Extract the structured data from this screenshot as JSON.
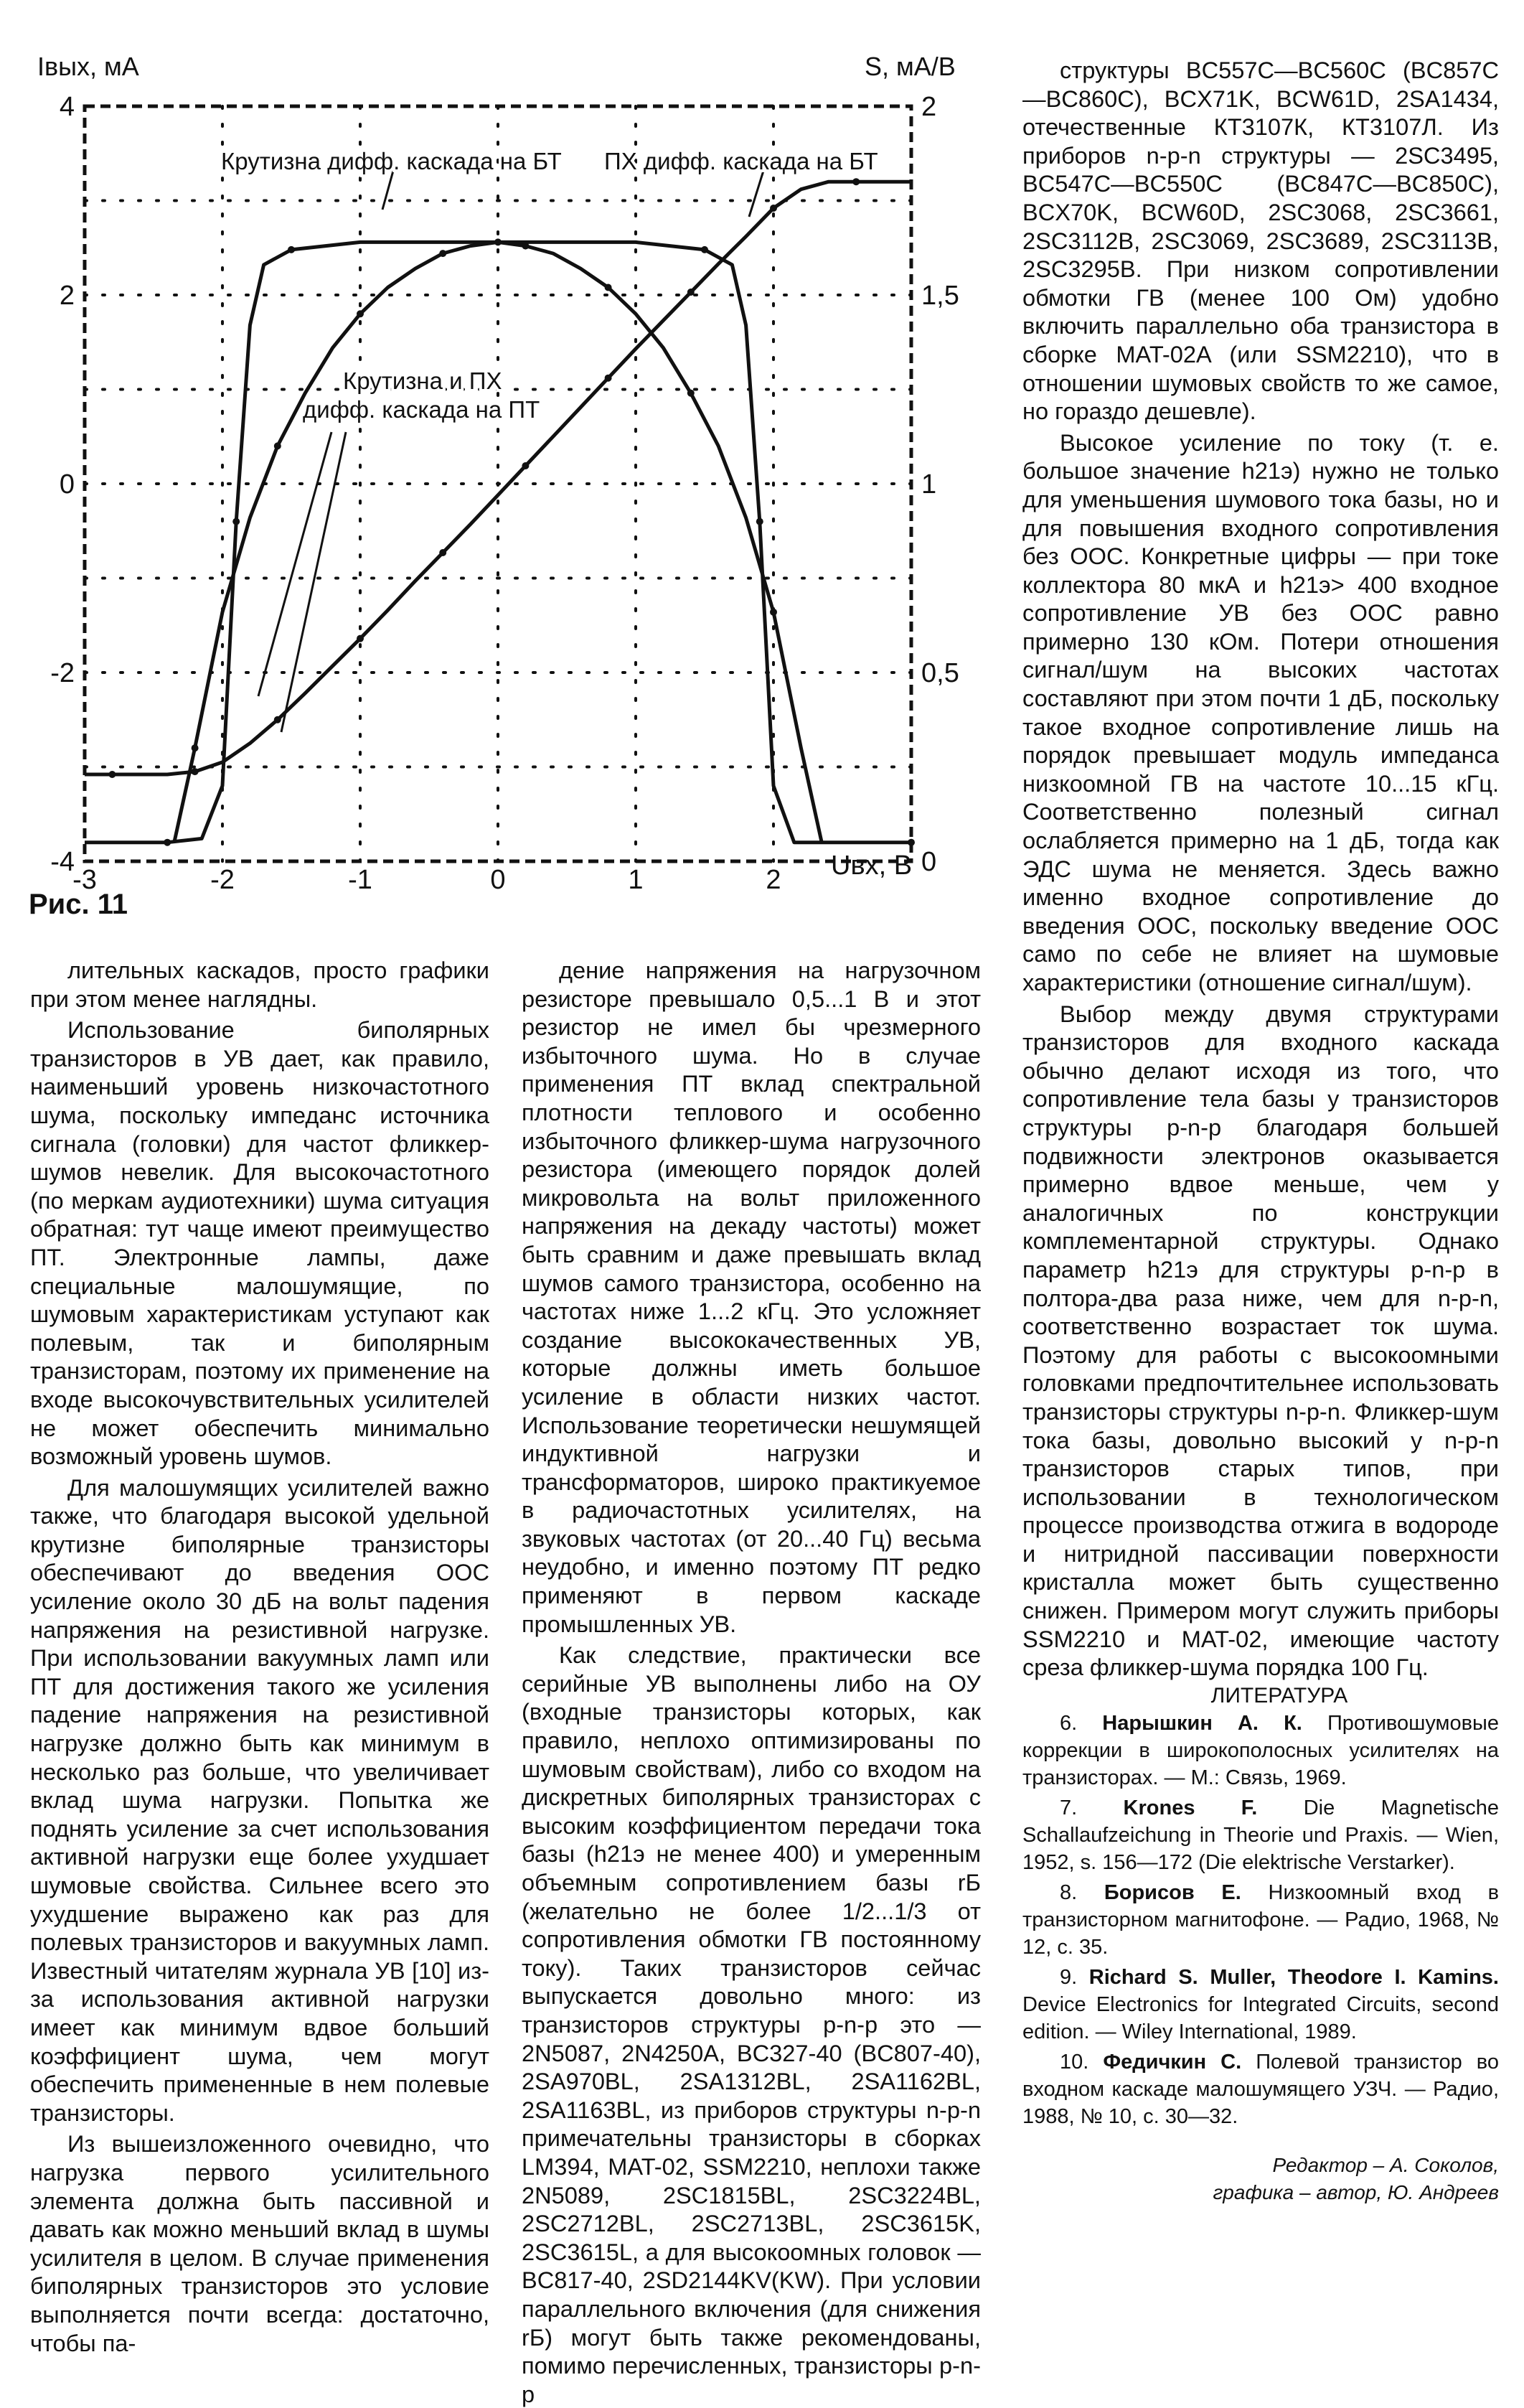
{
  "figure": {
    "caption": "Рис. 11",
    "chart_data": {
      "type": "line",
      "y_left_label": "Iвых, мА",
      "y_right_label": "S, мА/В",
      "x_label": "Uвх, В",
      "x_ticks": [
        "-3",
        "-2",
        "-1",
        "0",
        "1",
        "2"
      ],
      "y_left_ticks": [
        "4",
        "2",
        "0",
        "-2",
        "-4"
      ],
      "y_right_ticks": [
        "2",
        "1,5",
        "1",
        "0,5",
        "0"
      ],
      "xlim": [
        -3,
        3
      ],
      "ylim_left": [
        -4,
        4
      ],
      "ylim_right": [
        0,
        2
      ],
      "grid": "dotted",
      "annotations": {
        "bt_slope": "Крутизна дифф. каскада на БТ",
        "bt_transfer": "ПХ дифф. каскада на БТ",
        "ft_line1": "Крутизна и ПХ",
        "ft_line2": "дифф. каскада на ПТ"
      },
      "series": [
        {
          "x": [
            -3,
            -2.8,
            -2.6,
            -2.4,
            -2.2,
            -2.0,
            -1.8,
            -1.6,
            -1.4,
            -1.2,
            -1.0,
            -0.8,
            -0.6,
            -0.4,
            -0.2,
            0,
            0.2,
            0.4,
            0.6,
            0.8,
            1.0,
            1.2,
            1.4,
            1.6,
            1.8,
            2.0,
            2.2,
            2.4,
            2.6,
            2.8,
            3.0
          ],
          "y": [
            -3.08,
            -3.08,
            -3.08,
            -3.08,
            -3.05,
            -2.95,
            -2.75,
            -2.5,
            -2.22,
            -1.93,
            -1.64,
            -1.34,
            -1.03,
            -0.73,
            -0.43,
            -0.12,
            0.19,
            0.5,
            0.81,
            1.12,
            1.43,
            1.73,
            2.03,
            2.33,
            2.62,
            2.92,
            3.12,
            3.2,
            3.2,
            3.2,
            3.2
          ]
        },
        {
          "x": [
            -3,
            -2.4,
            -2.15,
            -2.0,
            -1.9,
            -1.8,
            -1.7,
            -1.5,
            -1.0,
            -0.5,
            0,
            0.5,
            1.0,
            1.5,
            1.7,
            1.8,
            1.9,
            2.0,
            2.15,
            3.0
          ],
          "y": [
            0.05,
            0.05,
            0.06,
            0.2,
            0.9,
            1.42,
            1.58,
            1.62,
            1.64,
            1.64,
            1.64,
            1.64,
            1.64,
            1.62,
            1.58,
            1.42,
            0.9,
            0.2,
            0.05,
            0.05
          ]
        },
        {
          "x": [
            -2.35,
            -2.2,
            -2.0,
            -1.8,
            -1.6,
            -1.4,
            -1.2,
            -1.0,
            -0.8,
            -0.6,
            -0.4,
            -0.2,
            0,
            0.2,
            0.4,
            0.6,
            0.8,
            1.0,
            1.2,
            1.4,
            1.6,
            1.8,
            2.0,
            2.2,
            2.35
          ],
          "y": [
            0.05,
            0.3,
            0.66,
            0.91,
            1.1,
            1.24,
            1.36,
            1.45,
            1.52,
            1.57,
            1.61,
            1.63,
            1.64,
            1.63,
            1.61,
            1.57,
            1.52,
            1.45,
            1.36,
            1.24,
            1.1,
            0.91,
            0.66,
            0.3,
            0.05
          ]
        }
      ]
    }
  },
  "col1": [
    "лительных каскадов, просто графики при этом менее наглядны.",
    "Использование биполярных транзисторов в УВ дает, как правило, наименьший уровень низкочастотного шума, поскольку импеданс источника сигнала (головки) для частот фликкер-шумов невелик. Для высокочастотного (по меркам аудиотехники) шума ситуация обратная: тут чаще имеют преимущество ПТ. Электронные лампы, даже специальные малошумящие, по шумовым характеристикам уступают как полевым, так и биполярным транзисторам, поэтому их применение на входе высокочувствительных усилителей не может обеспечить минимально возможный уровень шумов.",
    "Для малошумящих усилителей важно также, что благодаря высокой удельной крутизне биполярные транзисторы обеспечивают до введения ООС усиление около 30 дБ на вольт падения напряжения на резистивной нагрузке. При использовании вакуумных ламп или ПТ для достижения такого же усиления падение напряжения на резистивной нагрузке должно быть как минимум в несколько раз больше, что увеличивает вклад шума нагрузки. Попытка же поднять усиление за счет использования активной нагрузки еще более ухудшает шумовые свойства. Сильнее всего это ухудшение выражено как раз для полевых транзисторов и вакуумных ламп. Известный читателям журнала УВ [10] из-за использования активной нагрузки имеет как минимум вдвое больший коэффициент шума, чем могут обеспечить примененные в нем полевые транзисторы.",
    "Из вышеизложенного очевидно, что нагрузка первого усилительного элемента должна быть пассивной и давать как можно меньший вклад в шумы усилителя в целом. В случае применения биполярных транзисторов это условие выполняется почти всегда: достаточно, чтобы па-"
  ],
  "col2": [
    "дение напряжения на нагрузочном резисторе превышало 0,5...1 В и этот резистор не имел бы чрезмерного избыточного шума. Но в случае применения ПТ вклад спектральной плотности теплового и особенно избыточного фликкер-шума нагрузочного резистора (имеющего порядок долей микровольта на вольт приложенного напряжения на декаду частоты) может быть сравним и даже превышать вклад шумов самого транзистора, особенно на частотах ниже 1...2 кГц. Это усложняет создание высококачественных УВ, которые должны иметь большое усиление в области низких частот. Использование теоретически нешумящей индуктивной нагрузки и трансформаторов, широко практикуемое в радиочастотных усилителях, на звуковых частотах (от 20...40 Гц) весьма неудобно, и именно поэтому ПТ редко применяют в первом каскаде промышленных УВ.",
    "Как следствие, практически все серийные УВ выполнены либо на ОУ (входные транзисторы которых, как правило, неплохо оптимизированы по шумовым свойствам), либо со входом на дискретных биполярных транзисторах с высоким коэффициентом передачи тока базы (h21э не менее 400) и умеренным объемным сопротивлением базы rБ (желательно не более 1/2...1/3 от сопротивления обмотки ГВ постоянному току). Таких транзисторов сейчас выпускается довольно много: из транзисторов структуры p-n-p это — 2N5087, 2N4250A, BC327-40 (BC807-40), 2SA970BL, 2SA1312BL, 2SA1162BL, 2SA1163BL, из приборов структуры n-p-n примечательны транзисторы в сборках LM394, MAT-02, SSM2210, неплохи также 2N5089, 2SC1815BL, 2SC3224BL, 2SC2712BL, 2SC2713BL, 2SC3615K, 2SC3615L, а для высокоомных головок — BC817-40, 2SD2144KV(KW). При условии параллельного включения (для снижения rБ) могут быть также рекомендованы, помимо перечисленных, транзисторы p-n-p"
  ],
  "col3": [
    "структуры BC557C—BC560C (BC857C—BC860C), BCX71K, BCW61D, 2SA1434, отечественные КТ3107К, КТ3107Л. Из приборов n-p-n структуры — 2SC3495, BC547C—BC550C (BC847C—BC850C), BCX70K, BCW60D, 2SC3068, 2SC3661, 2SC3112B, 2SC3069, 2SC3689, 2SC3113B, 2SC3295B. При низком сопротивлении обмотки ГВ (менее 100 Ом) удобно включить параллельно оба транзистора в сборке MAT-02A (или SSM2210), что в отношении шумовых свойств то же самое, но гораздо дешевле).",
    "Высокое усиление по току (т. е. большое значение h21э) нужно не только для уменьшения шумового тока базы, но и для повышения входного сопротивления без ООС. Конкретные цифры — при токе коллектора 80 мкА и h21э> 400 входное сопротивление УВ без ООС равно примерно 130 кОм. Потери отношения сигнал/шум на высоких частотах составляют при этом почти 1 дБ, поскольку такое входное сопротивление лишь на порядок превышает модуль импеданса низкоомной ГВ на частоте 10...15 кГц. Соответственно полезный сигнал ослабляется примерно на 1 дБ, тогда как ЭДС шума не меняется. Здесь важно именно входное сопротивление до введения ООС, поскольку введение ООС само по себе не влияет на шумовые характеристики (отношение сигнал/шум).",
    "Выбор между двумя структурами транзисторов для входного каскада обычно делают исходя из того, что сопротивление тела базы у транзисторов структуры p-n-p благодаря большей подвижности электронов оказывается примерно вдвое меньше, чем у аналогичных по конструкции комплементарной структуры. Однако параметр h21э для структуры p-n-p в полтора-два раза ниже, чем для n-p-n, соответственно возрастает ток шума. Поэтому для работы с высокоомными головками предпочтительнее использовать транзисторы структуры n-p-n. Фликкер-шум тока базы, довольно высокий у n-p-n транзисторов старых типов, при использовании в технологическом процессе производства отжига в водороде и нитридной пассивации поверхности кристалла может быть существенно снижен. Примером могут служить приборы SSM2210 и MAT-02, имеющие частоту среза фликкер-шума порядка 100 Гц."
  ],
  "literature": {
    "heading": "ЛИТЕРАТУРА",
    "refs": [
      {
        "num": "6.",
        "author": "Нарышкин А. К.",
        "text": "Противошумовые коррекции в широкополосных усилителях на транзисторах. — М.: Связь, 1969."
      },
      {
        "num": "7.",
        "author": "Krones F.",
        "text": "Die Magnetische Schallaufzeichung in Theorie und Praxis. — Wien, 1952, s. 156—172 (Die elektrische Verstarker)."
      },
      {
        "num": "8.",
        "author": "Борисов Е.",
        "text": "Низкоомный вход в транзисторном магнитофоне. — Радио, 1968, № 12, с. 35."
      },
      {
        "num": "9.",
        "author": "Richard S. Muller, Theodore I. Kamins.",
        "text": "Device Electronics for Integrated Circuits, second edition. — Wiley International, 1989."
      },
      {
        "num": "10.",
        "author": "Федичкин С.",
        "text": "Полевой транзистор во входном каскаде малошумящего УЗЧ. — Радио, 1988, № 10, с. 30—32."
      }
    ],
    "editor": "Редактор – А. Соколов,",
    "graphics": "графика – автор, Ю. Андреев"
  }
}
